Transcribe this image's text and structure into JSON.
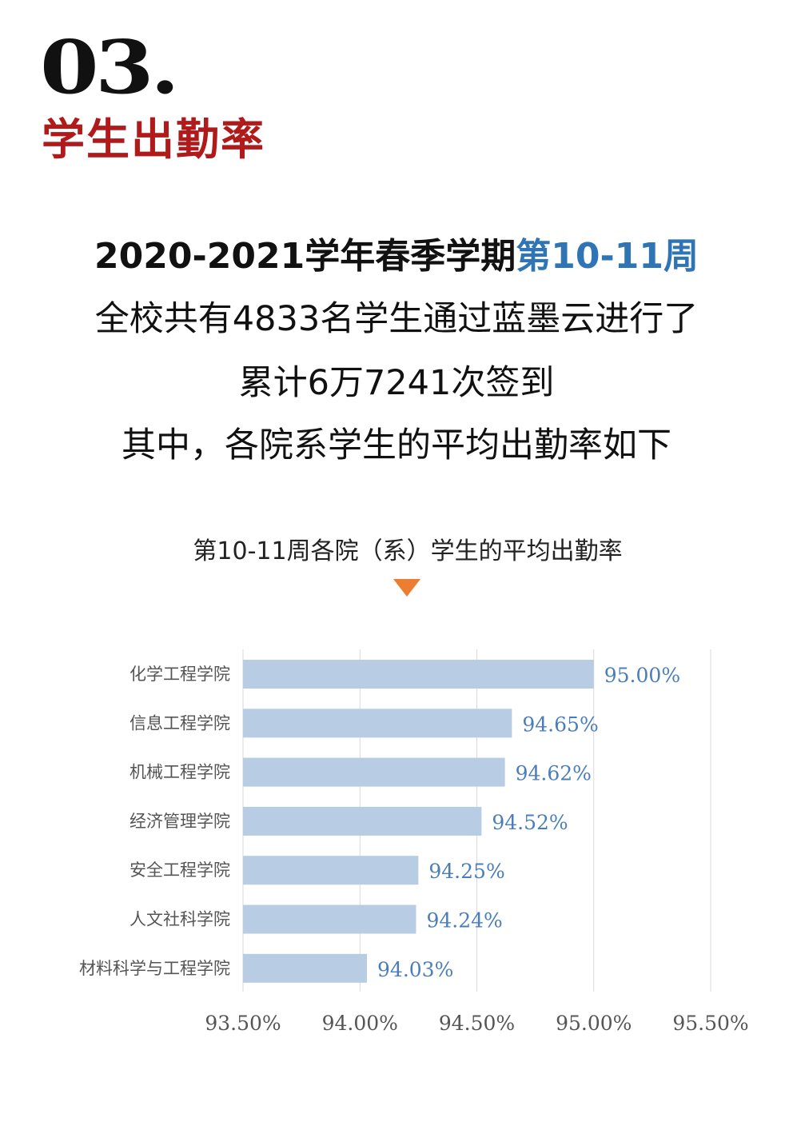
{
  "header": {
    "section_number": "03.",
    "section_title": "学生出勤率"
  },
  "intro": {
    "line1_prefix": "2020-2021学年春季学期",
    "line1_highlight": "第10-11周",
    "line2": "全校共有4833名学生通过蓝墨云进行了",
    "line3": "累计6万7241次签到",
    "line4": "其中，各院系学生的平均出勤率如下"
  },
  "colors": {
    "accent_red": "#b11a1a",
    "accent_blue": "#2f75b5",
    "bar": "#b8cce4",
    "value_label": "#4a7ebb",
    "pointer": "#ed7d31"
  },
  "chart_data": {
    "type": "bar",
    "orientation": "horizontal",
    "title": "第10-11周各院（系）学生的平均出勤率",
    "categories": [
      "化学工程学院",
      "信息工程学院",
      "机械工程学院",
      "经济管理学院",
      "安全工程学院",
      "人文社科学院",
      "材料科学与工程学院"
    ],
    "values": [
      95.0,
      94.65,
      94.62,
      94.52,
      94.25,
      94.24,
      94.03
    ],
    "value_labels": [
      "95.00%",
      "94.65%",
      "94.62%",
      "94.52%",
      "94.25%",
      "94.24%",
      "94.03%"
    ],
    "xlim": [
      93.5,
      95.5
    ],
    "x_ticks": [
      "93.50%",
      "94.00%",
      "94.50%",
      "95.00%",
      "95.50%"
    ],
    "grid": "vertical",
    "xlabel": "",
    "ylabel": ""
  }
}
